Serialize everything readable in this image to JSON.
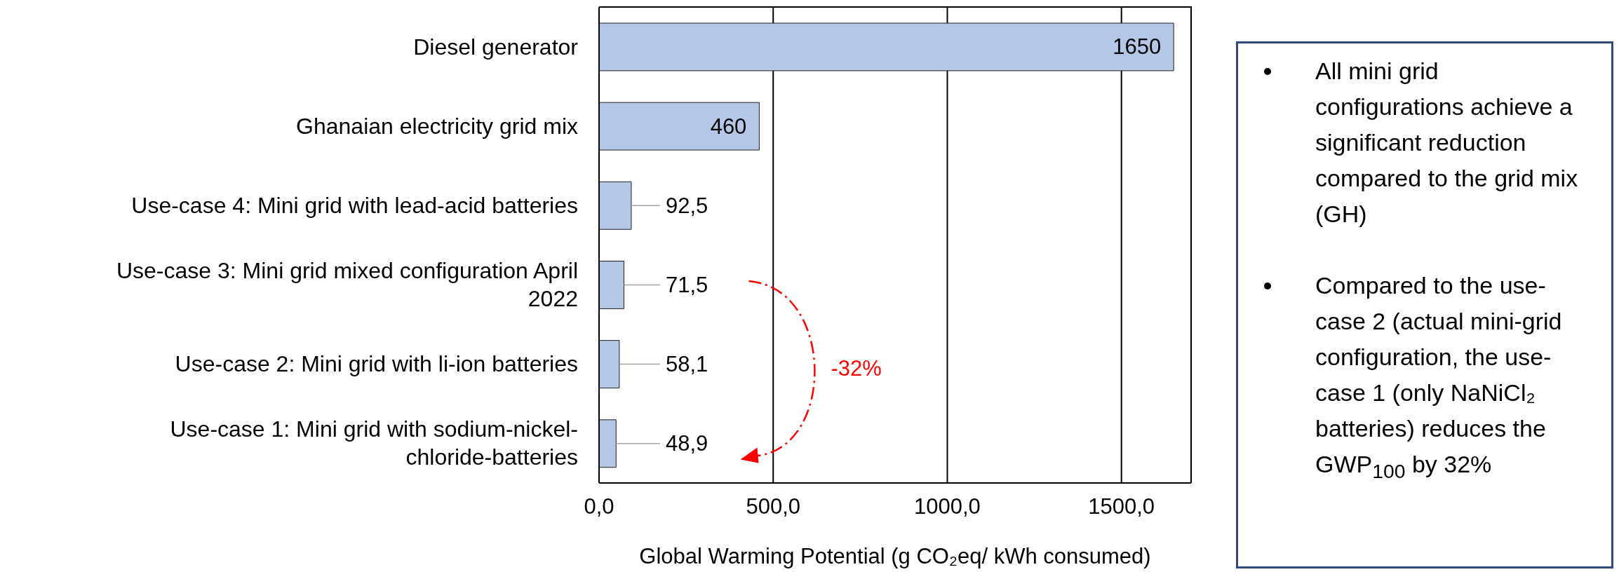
{
  "chart_data": {
    "type": "bar",
    "orientation": "horizontal",
    "xlabel": "Global Warming Potential (g CO₂eq/ kWh consumed)",
    "categories": [
      "Diesel generator",
      "Ghanaian electricity grid mix",
      "Use-case 4: Mini grid with lead-acid batteries",
      "Use-case 3: Mini grid mixed configuration April 2022",
      "Use-case 2: Mini grid with li-ion batteries",
      "Use-case 1: Mini grid with sodium-nickel-chloride-batteries"
    ],
    "values": [
      1650,
      460,
      92.5,
      71.5,
      58.1,
      48.9
    ],
    "value_labels": [
      "1650",
      "460",
      "92,5",
      "71,5",
      "58,1",
      "48,9"
    ],
    "color": "#b4c7e7",
    "xlim": [
      0,
      1700
    ],
    "xticks": [
      {
        "value": 0,
        "label": "0,0"
      },
      {
        "value": 500,
        "label": "500,0"
      },
      {
        "value": 1000,
        "label": "1000,0"
      },
      {
        "value": 1500,
        "label": "1500,0"
      }
    ],
    "grid": "x",
    "annotations": [
      {
        "text": "-32%"
      },
      "All mini grid configurations achieve a significant reduction compared to the grid mix (GH)",
      "Compared to the use-case 2 (actual mini-grid configuration, the use-case 1 (only NaNiCl₂ batteries) reduces the GWP$_{100}$ by 32%"
    ]
  }
}
